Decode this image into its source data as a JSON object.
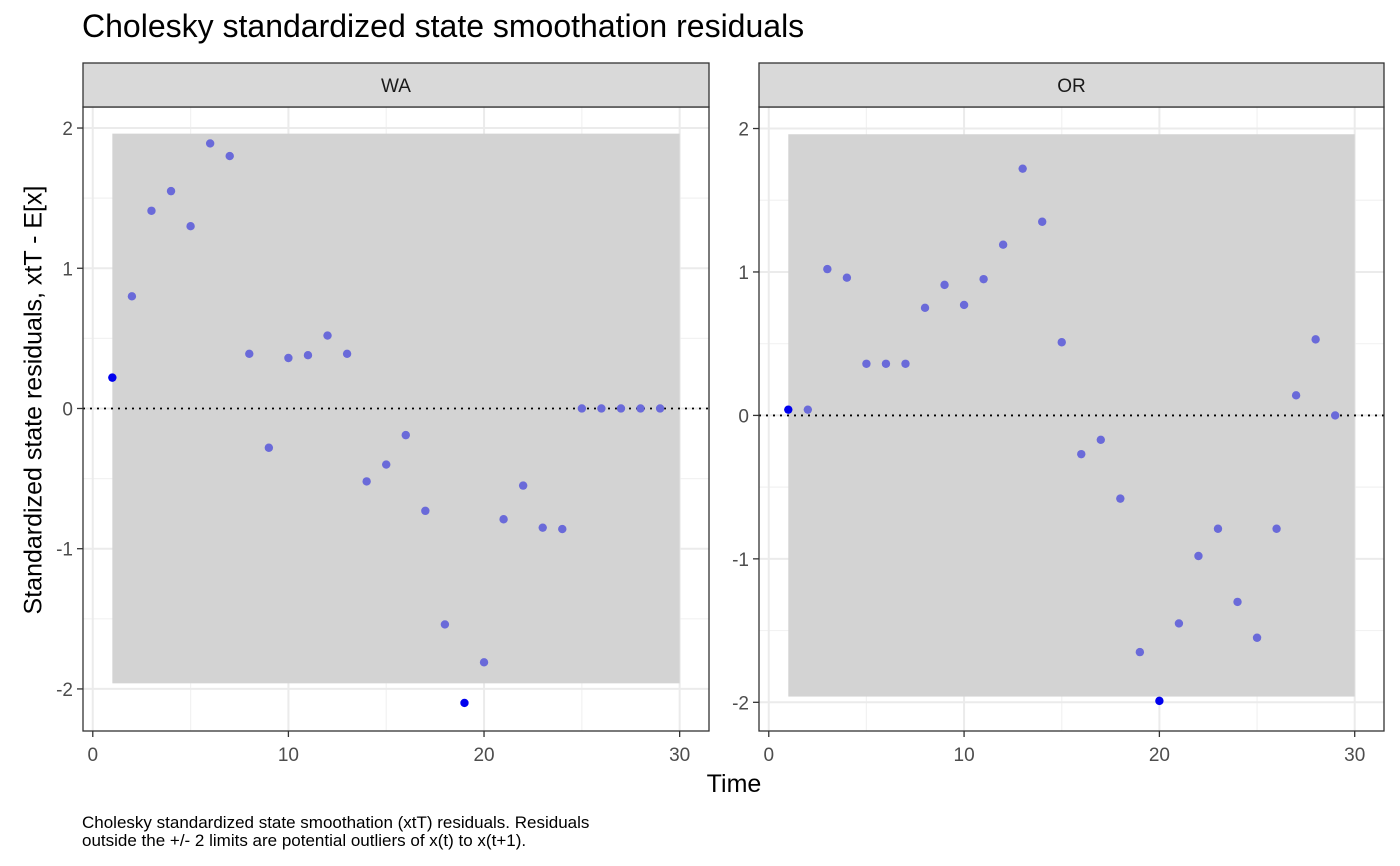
{
  "chart_data": {
    "type": "scatter",
    "title": "Cholesky standardized state smoothation residuals",
    "xlabel": "Time",
    "ylabel": "Standardized state residuals, xtT - E[x]",
    "caption": [
      "Cholesky standardized state smoothation (xtT) residuals. Residuals",
      "outside the +/- 2 limits are potential outliers of x(t) to x(t+1)."
    ],
    "xlim": [
      -0.5,
      31.5
    ],
    "x_ticks": [
      0,
      10,
      20,
      30
    ],
    "x_tick_labels": [
      "0",
      "10",
      "20",
      "30"
    ],
    "band": {
      "x": [
        1,
        30
      ],
      "fill": "#d3d3d3"
    },
    "reference_line": {
      "y": 0,
      "style": "dotted"
    },
    "colors": {
      "point": "#6a6ad9",
      "outlier": "#0000ee",
      "strip": "#d9d9d9",
      "band": "#d3d3d3"
    },
    "panels": [
      {
        "strip": "WA",
        "ylim": [
          -2.3,
          2.15
        ],
        "y_ticks": [
          -2,
          -1,
          0,
          1,
          2
        ],
        "y_tick_labels": [
          "-2",
          "-1",
          "0",
          "1",
          "2"
        ],
        "band_y": [
          -1.96,
          1.96
        ],
        "x": [
          1,
          2,
          3,
          4,
          5,
          6,
          7,
          8,
          9,
          10,
          11,
          12,
          13,
          14,
          15,
          16,
          17,
          18,
          19,
          20,
          21,
          22,
          23,
          24,
          25,
          26,
          27,
          28,
          29
        ],
        "y": [
          0.22,
          0.8,
          1.41,
          1.55,
          1.3,
          1.89,
          1.8,
          0.39,
          -0.28,
          0.36,
          0.38,
          0.52,
          0.39,
          -0.52,
          -0.4,
          -0.19,
          -0.73,
          -1.54,
          -2.1,
          -1.81,
          -0.79,
          -0.55,
          -0.85,
          -0.86,
          0.0,
          0.0,
          0.0,
          0.0,
          0.0
        ],
        "outlier_x": [
          1,
          19
        ]
      },
      {
        "strip": "OR",
        "ylim": [
          -2.2,
          2.15
        ],
        "y_ticks": [
          -2,
          -1,
          0,
          1,
          2
        ],
        "y_tick_labels": [
          "-2",
          "-1",
          "0",
          "1",
          "2"
        ],
        "band_y": [
          -1.96,
          1.96
        ],
        "x": [
          1,
          2,
          3,
          4,
          5,
          6,
          7,
          8,
          9,
          10,
          11,
          12,
          13,
          14,
          15,
          16,
          17,
          18,
          19,
          20,
          21,
          22,
          23,
          24,
          25,
          26,
          27,
          28,
          29
        ],
        "y": [
          0.04,
          0.04,
          1.02,
          0.96,
          0.36,
          0.36,
          0.36,
          0.75,
          0.91,
          0.77,
          0.95,
          1.19,
          1.72,
          1.35,
          0.51,
          -0.27,
          -0.17,
          -0.58,
          -1.65,
          -1.99,
          -1.45,
          -0.98,
          -0.79,
          -1.3,
          -1.55,
          -0.79,
          0.14,
          0.53,
          0.0
        ],
        "outlier_x": [
          1,
          20
        ]
      }
    ]
  }
}
